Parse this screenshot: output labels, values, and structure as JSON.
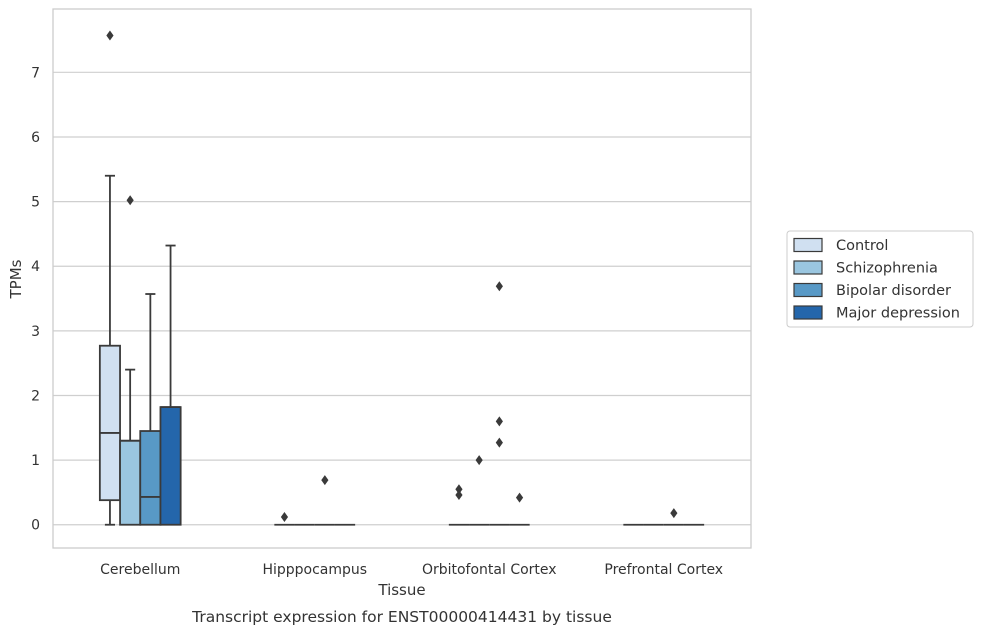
{
  "chart_data": {
    "type": "box",
    "xlabel": "Tissue",
    "ylabel": "TPMs",
    "caption": "Transcript expression for ENST00000414431 by tissue",
    "ylim": [
      -0.36,
      7.98
    ],
    "yticks": [
      0,
      1,
      2,
      3,
      4,
      5,
      6,
      7
    ],
    "grid": "horizontal",
    "legend_position": "right",
    "categories": [
      "Cerebellum",
      "Hipppocampus",
      "Orbitofontal Cortex",
      "Prefrontal Cortex"
    ],
    "series": [
      {
        "name": "Control",
        "color": "#d0e0f1",
        "boxes": [
          {
            "category": "Cerebellum",
            "whisker_low": 0.0,
            "q1": 0.38,
            "median": 1.42,
            "q3": 2.77,
            "whisker_high": 5.4,
            "outliers": [
              7.57
            ]
          },
          {
            "category": "Hipppocampus",
            "whisker_low": 0,
            "q1": 0,
            "median": 0,
            "q3": 0,
            "whisker_high": 0,
            "outliers": [
              0.12
            ]
          },
          {
            "category": "Orbitofontal Cortex",
            "whisker_low": 0,
            "q1": 0,
            "median": 0,
            "q3": 0,
            "whisker_high": 0,
            "outliers": [
              0.55,
              0.46
            ]
          },
          {
            "category": "Prefrontal Cortex",
            "whisker_low": 0,
            "q1": 0,
            "median": 0,
            "q3": 0,
            "whisker_high": 0,
            "outliers": []
          }
        ]
      },
      {
        "name": "Schizophrenia",
        "color": "#9ac6e0",
        "boxes": [
          {
            "category": "Cerebellum",
            "whisker_low": 0.0,
            "q1": 0.0,
            "median": 1.3,
            "q3": 1.3,
            "whisker_high": 2.4,
            "outliers": [
              5.02
            ]
          },
          {
            "category": "Hipppocampus",
            "whisker_low": 0,
            "q1": 0,
            "median": 0,
            "q3": 0,
            "whisker_high": 0,
            "outliers": []
          },
          {
            "category": "Orbitofontal Cortex",
            "whisker_low": 0,
            "q1": 0,
            "median": 0,
            "q3": 0,
            "whisker_high": 0,
            "outliers": [
              1.0
            ]
          },
          {
            "category": "Prefrontal Cortex",
            "whisker_low": 0,
            "q1": 0,
            "median": 0,
            "q3": 0,
            "whisker_high": 0,
            "outliers": []
          }
        ]
      },
      {
        "name": "Bipolar disorder",
        "color": "#5899c6",
        "boxes": [
          {
            "category": "Cerebellum",
            "whisker_low": 0.0,
            "q1": 0.0,
            "median": 0.43,
            "q3": 1.45,
            "whisker_high": 3.57,
            "outliers": []
          },
          {
            "category": "Hipppocampus",
            "whisker_low": 0,
            "q1": 0,
            "median": 0,
            "q3": 0,
            "whisker_high": 0,
            "outliers": [
              0.69
            ]
          },
          {
            "category": "Orbitofontal Cortex",
            "whisker_low": 0,
            "q1": 0,
            "median": 0,
            "q3": 0,
            "whisker_high": 0,
            "outliers": [
              3.69,
              1.6,
              1.27
            ]
          },
          {
            "category": "Prefrontal Cortex",
            "whisker_low": 0,
            "q1": 0,
            "median": 0,
            "q3": 0,
            "whisker_high": 0,
            "outliers": [
              0.18
            ]
          }
        ]
      },
      {
        "name": "Major depression",
        "color": "#2466ab",
        "boxes": [
          {
            "category": "Cerebellum",
            "whisker_low": 0.0,
            "q1": 0.0,
            "median": 1.82,
            "q3": 1.82,
            "whisker_high": 4.32,
            "outliers": []
          },
          {
            "category": "Hipppocampus",
            "whisker_low": 0,
            "q1": 0,
            "median": 0,
            "q3": 0,
            "whisker_high": 0,
            "outliers": []
          },
          {
            "category": "Orbitofontal Cortex",
            "whisker_low": 0,
            "q1": 0,
            "median": 0,
            "q3": 0,
            "whisker_high": 0,
            "outliers": [
              0.42
            ]
          },
          {
            "category": "Prefrontal Cortex",
            "whisker_low": 0,
            "q1": 0,
            "median": 0,
            "q3": 0,
            "whisker_high": 0,
            "outliers": []
          }
        ]
      }
    ]
  },
  "style": {
    "line_color": "#3a3a3a",
    "grid_color": "#cfcfcf",
    "frame_color": "#cccccc",
    "outlier_color": "#3a3a3a"
  }
}
